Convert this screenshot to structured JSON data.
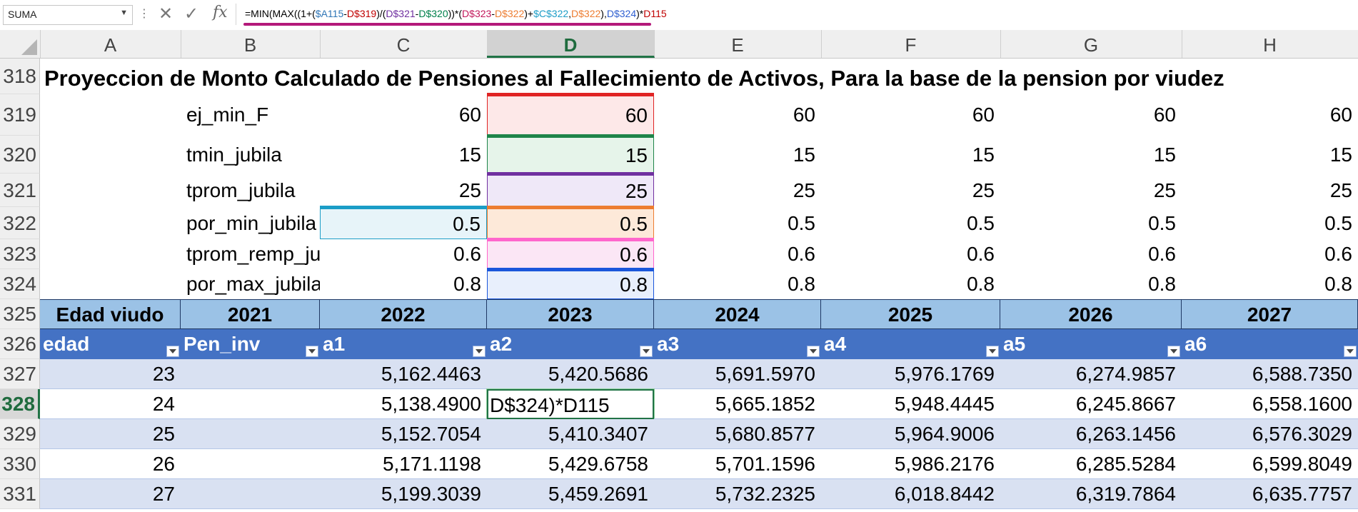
{
  "name_box": "SUMA",
  "formula_bar": {
    "parts": [
      {
        "t": "=MIN(MAX((1+(",
        "c": "#000000"
      },
      {
        "t": "$A115",
        "c": "#2e75b6"
      },
      {
        "t": "-",
        "c": "#000000"
      },
      {
        "t": "D$319",
        "c": "#c00000"
      },
      {
        "t": ")/(",
        "c": "#000000"
      },
      {
        "t": "D$321",
        "c": "#7030a0"
      },
      {
        "t": "-",
        "c": "#000000"
      },
      {
        "t": "D$320",
        "c": "#00804b"
      },
      {
        "t": "))*(",
        "c": "#000000"
      },
      {
        "t": "D$323",
        "c": "#c2185b"
      },
      {
        "t": "-",
        "c": "#000000"
      },
      {
        "t": "D$322",
        "c": "#ed7d31"
      },
      {
        "t": ")+",
        "c": "#000000"
      },
      {
        "t": "$C$322",
        "c": "#1b9dc7"
      },
      {
        "t": ",",
        "c": "#000000"
      },
      {
        "t": "D$322",
        "c": "#ed7d31"
      },
      {
        "t": "),",
        "c": "#000000"
      },
      {
        "t": "D$324",
        "c": "#2f5fd0"
      },
      {
        "t": ")*",
        "c": "#000000"
      },
      {
        "t": "D115",
        "c": "#c00000"
      }
    ]
  },
  "columns": [
    "A",
    "B",
    "C",
    "D",
    "E",
    "F",
    "G",
    "H"
  ],
  "active_column": "D",
  "rows": [
    "318",
    "319",
    "320",
    "321",
    "322",
    "323",
    "324",
    "325",
    "326",
    "327",
    "328",
    "329",
    "330",
    "331"
  ],
  "active_row": "328",
  "title_row": {
    "text": "Proyeccion de Monto Calculado de Pensiones al Fallecimiento de Activos, Para la base de la pension por viudez"
  },
  "params": [
    {
      "label": "ej_min_F",
      "values": [
        "60",
        "60",
        "60",
        "60",
        "60",
        "60"
      ]
    },
    {
      "label": "tmin_jubila",
      "values": [
        "15",
        "15",
        "15",
        "15",
        "15",
        "15"
      ]
    },
    {
      "label": "tprom_jubila",
      "values": [
        "25",
        "25",
        "25",
        "25",
        "25",
        "25"
      ]
    },
    {
      "label": "por_min_jubila",
      "values": [
        "0.5",
        "0.5",
        "0.5",
        "0.5",
        "0.5",
        "0.5"
      ]
    },
    {
      "label": "tprom_remp_ju",
      "values": [
        "0.6",
        "0.6",
        "0.6",
        "0.6",
        "0.6",
        "0.6"
      ]
    },
    {
      "label": "por_max_jubila",
      "values": [
        "0.8",
        "0.8",
        "0.8",
        "0.8",
        "0.8",
        "0.8"
      ]
    }
  ],
  "year_header": [
    "Edad viudo",
    "2021",
    "2022",
    "2023",
    "2024",
    "2025",
    "2026",
    "2027"
  ],
  "table_header": [
    "edad",
    "Pen_inv",
    "a1",
    "a2",
    "a3",
    "a4",
    "a5",
    "a6"
  ],
  "table_rows": [
    [
      "23",
      "",
      "5,162.4463",
      "5,420.5686",
      "5,691.5970",
      "5,976.1769",
      "6,274.9857",
      "6,588.7350"
    ],
    [
      "24",
      "",
      "5,138.4900",
      "D$324)*D115",
      "5,665.1852",
      "5,948.4445",
      "6,245.8667",
      "6,558.1600"
    ],
    [
      "25",
      "",
      "5,152.7054",
      "5,410.3407",
      "5,680.8577",
      "5,964.9006",
      "6,263.1456",
      "6,576.3029"
    ],
    [
      "26",
      "",
      "5,171.1198",
      "5,429.6758",
      "5,701.1596",
      "5,986.2176",
      "6,285.5284",
      "6,599.8049"
    ],
    [
      "27",
      "",
      "5,199.3039",
      "5,459.2691",
      "5,732.2325",
      "6,018.8442",
      "6,319.7864",
      "6,635.7757"
    ]
  ],
  "colors": {
    "ref_D319": "#e02424",
    "ref_D320": "#1e8449",
    "ref_D321": "#7030a0",
    "ref_D322": "#ed7d31",
    "ref_D323": "#ff66cc",
    "ref_D324": "#1a56db",
    "ref_C322": "#1b9dc7",
    "excel_green": "#217346",
    "header_year_fill": "#9bc2e6",
    "header_table_fill": "#4472c4",
    "band_fill": "#d9e1f2"
  }
}
